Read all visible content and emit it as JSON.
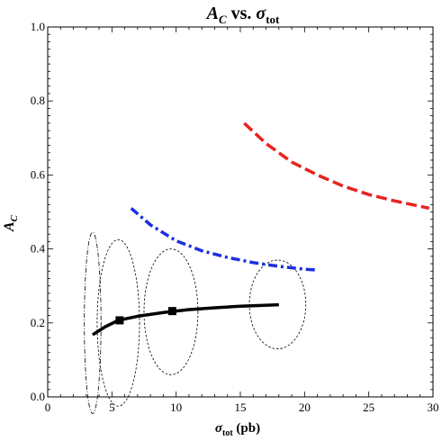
{
  "chart_data": {
    "type": "line",
    "title_main": "A",
    "title_main_sub": "C",
    "title_mid": " vs. ",
    "title_sigma": "σ",
    "title_sigma_sub": "tot",
    "ylabel_main": "A",
    "ylabel_sub": "C",
    "xlabel_sigma": "σ",
    "xlabel_sub": "tot",
    "xlabel_unit": " (pb)",
    "xlim": [
      0,
      30
    ],
    "ylim": [
      0,
      1.0
    ],
    "x_ticks": [
      0,
      5,
      10,
      15,
      20,
      25,
      30
    ],
    "y_ticks": [
      0.0,
      0.2,
      0.4,
      0.6,
      0.8,
      1.0
    ],
    "x_tick_labels": [
      "0",
      "5",
      "10",
      "15",
      "20",
      "25",
      "30"
    ],
    "y_tick_labels": [
      "0.0",
      "0.2",
      "0.4",
      "0.6",
      "0.8",
      "1.0"
    ],
    "grid": false,
    "series": [
      {
        "color": "#e8231f",
        "style": "dashed",
        "x": [
          15.3,
          17,
          19,
          21,
          23,
          25,
          27,
          29.7
        ],
        "y": [
          0.74,
          0.685,
          0.635,
          0.6,
          0.57,
          0.547,
          0.53,
          0.51
        ]
      },
      {
        "color": "#1c2fe0",
        "style": "dashdot",
        "x": [
          6.5,
          8,
          10,
          12,
          14,
          16,
          18,
          20,
          21
        ],
        "y": [
          0.51,
          0.465,
          0.422,
          0.395,
          0.377,
          0.363,
          0.353,
          0.345,
          0.343
        ]
      },
      {
        "color": "#000000",
        "style": "solid",
        "x": [
          3.5,
          4.5,
          5.5,
          7,
          9,
          11,
          13,
          15,
          18
        ],
        "y": [
          0.168,
          0.19,
          0.207,
          0.218,
          0.228,
          0.236,
          0.241,
          0.245,
          0.249
        ]
      }
    ],
    "markers": [
      {
        "x": 5.6,
        "y": 0.207
      },
      {
        "x": 9.7,
        "y": 0.232
      }
    ],
    "ellipses": [
      {
        "cx": 3.5,
        "cy": 0.2,
        "rx": 0.65,
        "ry": 0.245,
        "style": "dashdot"
      },
      {
        "cx": 5.5,
        "cy": 0.2,
        "rx": 1.65,
        "ry": 0.225,
        "style": "dotted"
      },
      {
        "cx": 9.6,
        "cy": 0.23,
        "rx": 2.1,
        "ry": 0.17,
        "style": "dotted"
      },
      {
        "cx": 17.9,
        "cy": 0.25,
        "rx": 2.2,
        "ry": 0.12,
        "style": "dotted"
      }
    ]
  }
}
